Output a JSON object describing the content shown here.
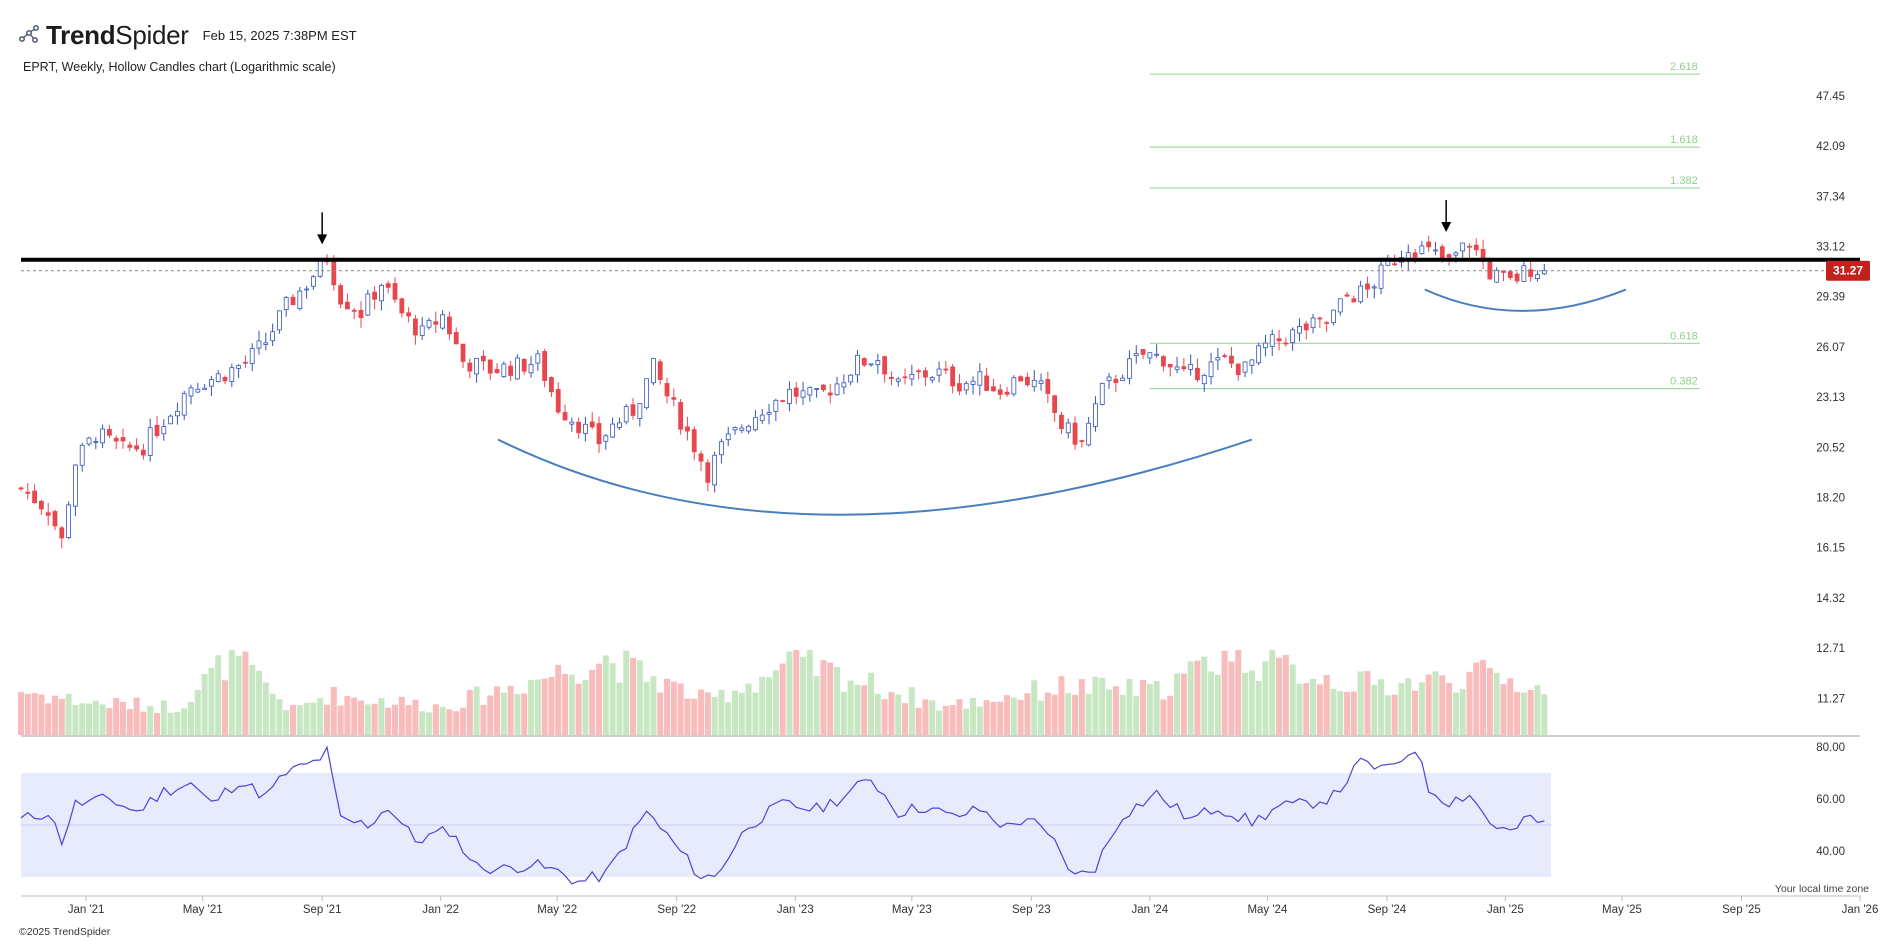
{
  "header": {
    "brand_bold": "Trend",
    "brand_light": "Spider",
    "timestamp": "Feb 15, 2025 7:38PM EST",
    "chart_caption": "EPRT, Weekly, Hollow Candles chart (Logarithmic scale)",
    "logo_icon": "trendspider-logo-icon"
  },
  "footer": {
    "copyright": "©2025 TrendSpider",
    "timezone_note": "Your local time zone"
  },
  "colors": {
    "up": "#3355bb",
    "down": "#e8474e",
    "vol_up": "#c7e7c3",
    "vol_down": "#f9bcbc",
    "fib": "#8fd18c",
    "resistance": "#000000",
    "arc": "#4a7fbd",
    "rsi_line": "#4a46d8",
    "rsi_band": "#e8ebfb",
    "price_badge": "#c0231c"
  },
  "chart_data": {
    "type": "candlestick",
    "title": "EPRT, Weekly, Hollow Candles chart (Logarithmic scale)",
    "symbol": "EPRT",
    "interval": "Weekly",
    "scale": "log",
    "last_price": 31.27,
    "last_price_label": "31.27",
    "price_ticks": [
      "47.45",
      "42.09",
      "37.34",
      "33.12",
      "29.39",
      "26.07",
      "23.13",
      "20.52",
      "18.20",
      "16.15",
      "14.32",
      "12.71",
      "11.27"
    ],
    "price_tick_values": [
      47.45,
      42.09,
      37.34,
      33.12,
      29.39,
      26.07,
      23.13,
      20.52,
      18.2,
      16.15,
      14.32,
      12.71,
      11.27
    ],
    "x_start": "2020-10-26",
    "x_end": "2026-01-01",
    "x_ticks": [
      {
        "label": "Jan '21",
        "date": "2021-01-01"
      },
      {
        "label": "May '21",
        "date": "2021-05-01"
      },
      {
        "label": "Sep '21",
        "date": "2021-09-01"
      },
      {
        "label": "Jan '22",
        "date": "2022-01-01"
      },
      {
        "label": "May '22",
        "date": "2022-05-01"
      },
      {
        "label": "Sep '22",
        "date": "2022-09-01"
      },
      {
        "label": "Jan '23",
        "date": "2023-01-01"
      },
      {
        "label": "May '23",
        "date": "2023-05-01"
      },
      {
        "label": "Sep '23",
        "date": "2023-09-01"
      },
      {
        "label": "Jan '24",
        "date": "2024-01-01"
      },
      {
        "label": "May '24",
        "date": "2024-05-01"
      },
      {
        "label": "Sep '24",
        "date": "2024-09-01"
      },
      {
        "label": "Jan '25",
        "date": "2025-01-01"
      },
      {
        "label": "May '25",
        "date": "2025-05-01"
      },
      {
        "label": "Sep '25",
        "date": "2025-09-01"
      },
      {
        "label": "Jan '26",
        "date": "2026-01-01"
      }
    ],
    "price_anchors": [
      [
        "2020-10-26",
        18.6
      ],
      [
        "2020-11-23",
        17.7
      ],
      [
        "2020-12-07",
        16.4
      ],
      [
        "2020-12-21",
        19.8
      ],
      [
        "2021-01-11",
        21.2
      ],
      [
        "2021-02-08",
        20.4
      ],
      [
        "2021-03-01",
        20.6
      ],
      [
        "2021-03-22",
        21.9
      ],
      [
        "2021-04-19",
        23.8
      ],
      [
        "2021-05-17",
        24.3
      ],
      [
        "2021-06-14",
        25.1
      ],
      [
        "2021-07-05",
        26.4
      ],
      [
        "2021-07-26",
        28.7
      ],
      [
        "2021-08-16",
        30.3
      ],
      [
        "2021-09-06",
        32.3
      ],
      [
        "2021-09-20",
        29.4
      ],
      [
        "2021-10-11",
        28.3
      ],
      [
        "2021-11-01",
        30.4
      ],
      [
        "2021-11-22",
        28.2
      ],
      [
        "2021-12-13",
        26.9
      ],
      [
        "2022-01-03",
        28.1
      ],
      [
        "2022-01-24",
        25.2
      ],
      [
        "2022-02-21",
        24.7
      ],
      [
        "2022-03-21",
        24.9
      ],
      [
        "2022-04-11",
        25.2
      ],
      [
        "2022-05-02",
        22.6
      ],
      [
        "2022-05-23",
        21.7
      ],
      [
        "2022-06-13",
        20.8
      ],
      [
        "2022-06-27",
        21.6
      ],
      [
        "2022-07-18",
        22.4
      ],
      [
        "2022-08-08",
        24.8
      ],
      [
        "2022-08-22",
        23.2
      ],
      [
        "2022-09-19",
        20.6
      ],
      [
        "2022-10-03",
        19.3
      ],
      [
        "2022-10-17",
        20.5
      ],
      [
        "2022-11-07",
        21.6
      ],
      [
        "2022-11-28",
        22.5
      ],
      [
        "2022-12-26",
        23.4
      ],
      [
        "2023-01-23",
        23.1
      ],
      [
        "2023-02-13",
        23.9
      ],
      [
        "2023-03-06",
        25.1
      ],
      [
        "2023-03-27",
        25.4
      ],
      [
        "2023-04-17",
        23.7
      ],
      [
        "2023-05-08",
        24.4
      ],
      [
        "2023-05-29",
        24.5
      ],
      [
        "2023-06-19",
        23.9
      ],
      [
        "2023-07-10",
        24.1
      ],
      [
        "2023-07-31",
        23.5
      ],
      [
        "2023-08-21",
        24.3
      ],
      [
        "2023-09-11",
        23.6
      ],
      [
        "2023-10-02",
        21.6
      ],
      [
        "2023-10-23",
        20.7
      ],
      [
        "2023-11-13",
        23.5
      ],
      [
        "2023-12-04",
        24.6
      ],
      [
        "2023-12-25",
        25.6
      ],
      [
        "2024-01-15",
        25.4
      ],
      [
        "2024-02-05",
        24.3
      ],
      [
        "2024-02-26",
        24.8
      ],
      [
        "2024-03-18",
        25.2
      ],
      [
        "2024-04-08",
        24.7
      ],
      [
        "2024-04-29",
        26.1
      ],
      [
        "2024-05-20",
        26.7
      ],
      [
        "2024-06-10",
        27.3
      ],
      [
        "2024-07-01",
        27.6
      ],
      [
        "2024-07-22",
        29.4
      ],
      [
        "2024-08-12",
        29.8
      ],
      [
        "2024-09-02",
        31.7
      ],
      [
        "2024-09-23",
        33.2
      ],
      [
        "2024-10-14",
        32.7
      ],
      [
        "2024-11-04",
        31.9
      ],
      [
        "2024-11-25",
        33.5
      ],
      [
        "2024-12-16",
        31.1
      ],
      [
        "2025-01-06",
        30.4
      ],
      [
        "2025-01-27",
        31.5
      ],
      [
        "2025-02-10",
        31.27
      ]
    ],
    "volume_anchors": [
      [
        "2020-10-26",
        0.55
      ],
      [
        "2021-01-04",
        0.4
      ],
      [
        "2021-04-05",
        0.35
      ],
      [
        "2021-05-31",
        0.98
      ],
      [
        "2021-08-02",
        0.3
      ],
      [
        "2021-09-06",
        0.5
      ],
      [
        "2022-01-03",
        0.35
      ],
      [
        "2022-06-20",
        0.95
      ],
      [
        "2022-10-03",
        0.42
      ],
      [
        "2023-01-02",
        0.9
      ],
      [
        "2023-06-05",
        0.35
      ],
      [
        "2023-10-02",
        0.6
      ],
      [
        "2024-01-08",
        0.55
      ],
      [
        "2024-03-04",
        0.9
      ],
      [
        "2024-03-18",
        1.0
      ],
      [
        "2024-07-22",
        0.65
      ],
      [
        "2024-09-02",
        0.62
      ],
      [
        "2024-12-16",
        0.75
      ],
      [
        "2025-02-10",
        0.55
      ]
    ],
    "rsi": {
      "ticks": [
        "80.00",
        "60.00",
        "40.00"
      ],
      "tick_values": [
        80,
        60,
        40
      ],
      "band": [
        70,
        30
      ],
      "midline": 50,
      "anchors": [
        [
          "2020-10-26",
          52
        ],
        [
          "2020-11-23",
          55
        ],
        [
          "2020-12-07",
          44
        ],
        [
          "2020-12-21",
          58
        ],
        [
          "2021-01-25",
          60
        ],
        [
          "2021-02-22",
          55
        ],
        [
          "2021-03-22",
          63
        ],
        [
          "2021-04-19",
          66
        ],
        [
          "2021-05-10",
          58
        ],
        [
          "2021-06-07",
          67
        ],
        [
          "2021-07-05",
          61
        ],
        [
          "2021-07-26",
          70
        ],
        [
          "2021-08-23",
          74
        ],
        [
          "2021-09-06",
          78
        ],
        [
          "2021-09-20",
          52
        ],
        [
          "2021-10-18",
          50
        ],
        [
          "2021-11-08",
          57
        ],
        [
          "2021-12-06",
          44
        ],
        [
          "2022-01-10",
          48
        ],
        [
          "2022-02-07",
          34
        ],
        [
          "2022-03-07",
          33
        ],
        [
          "2022-04-04",
          35
        ],
        [
          "2022-05-02",
          32
        ],
        [
          "2022-05-23",
          28
        ],
        [
          "2022-06-20",
          31
        ],
        [
          "2022-08-01",
          55
        ],
        [
          "2022-08-22",
          46
        ],
        [
          "2022-09-26",
          30
        ],
        [
          "2022-10-10",
          30
        ],
        [
          "2022-11-14",
          50
        ],
        [
          "2022-12-19",
          58
        ],
        [
          "2023-01-23",
          56
        ],
        [
          "2023-02-20",
          61
        ],
        [
          "2023-03-20",
          68
        ],
        [
          "2023-04-17",
          55
        ],
        [
          "2023-05-15",
          57
        ],
        [
          "2023-06-12",
          53
        ],
        [
          "2023-07-10",
          56
        ],
        [
          "2023-08-07",
          49
        ],
        [
          "2023-08-28",
          53
        ],
        [
          "2023-09-25",
          43
        ],
        [
          "2023-10-16",
          30
        ],
        [
          "2023-11-06",
          34
        ],
        [
          "2023-12-04",
          54
        ],
        [
          "2024-01-08",
          62
        ],
        [
          "2024-02-12",
          52
        ],
        [
          "2024-03-11",
          57
        ],
        [
          "2024-04-15",
          51
        ],
        [
          "2024-05-13",
          57
        ],
        [
          "2024-06-10",
          58
        ],
        [
          "2024-07-08",
          61
        ],
        [
          "2024-08-05",
          74
        ],
        [
          "2024-09-02",
          71
        ],
        [
          "2024-09-30",
          80
        ],
        [
          "2024-10-14",
          64
        ],
        [
          "2024-11-04",
          59
        ],
        [
          "2024-11-25",
          62
        ],
        [
          "2024-12-16",
          51
        ],
        [
          "2025-01-06",
          47
        ],
        [
          "2025-01-27",
          53
        ],
        [
          "2025-02-10",
          50
        ]
      ]
    },
    "fib_levels": [
      {
        "label": "2.618",
        "value": 50.0
      },
      {
        "label": "1.618",
        "value": 42.0
      },
      {
        "label": "1.382",
        "value": 38.1
      },
      {
        "label": "0.618",
        "value": 26.3
      },
      {
        "label": "0.382",
        "value": 23.6
      }
    ],
    "fib_range": [
      "2024-01-01",
      "2025-07-20"
    ],
    "resistance": {
      "value": 32.1,
      "from": "2020-10-26",
      "to": "2026-01-01"
    },
    "arrows": [
      {
        "date": "2021-09-01",
        "price": 33.3
      },
      {
        "date": "2024-11-01",
        "price": 34.3
      }
    ],
    "arcs": [
      {
        "from": [
          "2022-03-01",
          20.9
        ],
        "control": [
          "2023-01-10",
          14.6
        ],
        "to": [
          "2024-04-15",
          20.9
        ]
      },
      {
        "from": [
          "2024-10-10",
          29.9
        ],
        "control": [
          "2025-01-15",
          27.0
        ],
        "to": [
          "2025-05-05",
          29.9
        ]
      }
    ]
  }
}
